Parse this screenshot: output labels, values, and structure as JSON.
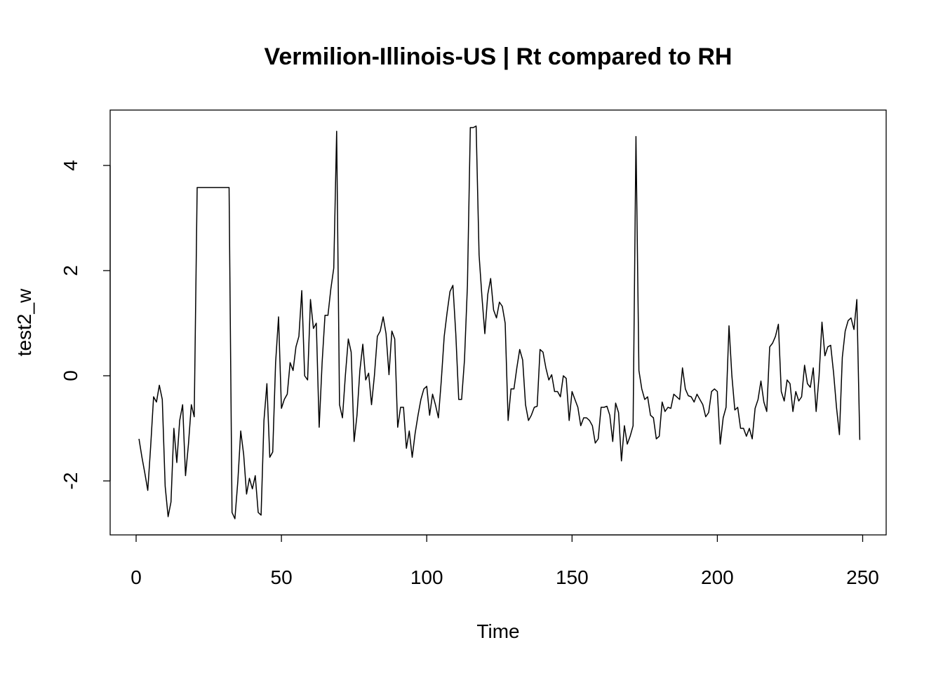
{
  "chart_data": {
    "type": "line",
    "title": "Vermilion-Illinois-US | Rt compared to RH",
    "xlabel": "Time",
    "ylabel": "test2_w",
    "xlim": [
      1,
      248
    ],
    "ylim": [
      -3,
      5
    ],
    "x_ticks": [
      0,
      50,
      100,
      150,
      200,
      250
    ],
    "x_tick_labels": [
      "0",
      "50",
      "100",
      "150",
      "200",
      "250"
    ],
    "y_ticks": [
      -2,
      0,
      2,
      4
    ],
    "y_tick_labels": [
      "-2",
      "0",
      "2",
      "4"
    ],
    "grid": false,
    "legend": "none",
    "line_color": "#000000",
    "x_start": 1,
    "values": [
      -1.2,
      -1.55,
      -1.85,
      -2.18,
      -1.35,
      -0.4,
      -0.5,
      -0.18,
      -0.45,
      -2.1,
      -2.68,
      -2.4,
      -1.0,
      -1.65,
      -0.85,
      -0.55,
      -1.9,
      -1.3,
      -0.55,
      -0.78,
      3.58,
      3.58,
      3.58,
      3.58,
      3.58,
      3.58,
      3.58,
      3.58,
      3.58,
      3.58,
      3.58,
      3.58,
      -2.6,
      -2.72,
      -2.0,
      -1.05,
      -1.5,
      -2.25,
      -1.95,
      -2.15,
      -1.9,
      -2.6,
      -2.65,
      -0.85,
      -0.15,
      -1.55,
      -1.45,
      0.25,
      1.12,
      -0.62,
      -0.45,
      -0.35,
      0.25,
      0.1,
      0.55,
      0.75,
      1.62,
      0.0,
      -0.08,
      1.45,
      0.9,
      1.0,
      -0.98,
      0.25,
      1.15,
      1.15,
      1.65,
      2.05,
      4.65,
      -0.55,
      -0.8,
      0.0,
      0.7,
      0.45,
      -1.25,
      -0.75,
      0.1,
      0.6,
      -0.08,
      0.05,
      -0.55,
      0.0,
      0.75,
      0.85,
      1.12,
      0.8,
      0.02,
      0.85,
      0.7,
      -0.98,
      -0.6,
      -0.6,
      -1.38,
      -1.05,
      -1.55,
      -1.1,
      -0.75,
      -0.45,
      -0.25,
      -0.2,
      -0.75,
      -0.35,
      -0.55,
      -0.8,
      -0.1,
      0.75,
      1.2,
      1.6,
      1.72,
      0.8,
      -0.45,
      -0.45,
      0.3,
      1.72,
      4.72,
      4.72,
      4.75,
      2.3,
      1.5,
      0.8,
      1.55,
      1.85,
      1.25,
      1.1,
      1.4,
      1.32,
      1.0,
      -0.85,
      -0.25,
      -0.25,
      0.15,
      0.5,
      0.3,
      -0.55,
      -0.85,
      -0.75,
      -0.6,
      -0.58,
      0.5,
      0.45,
      0.15,
      -0.08,
      0.02,
      -0.3,
      -0.3,
      -0.4,
      0.0,
      -0.05,
      -0.85,
      -0.3,
      -0.45,
      -0.6,
      -0.95,
      -0.8,
      -0.8,
      -0.85,
      -0.95,
      -1.28,
      -1.2,
      -0.6,
      -0.6,
      -0.58,
      -0.75,
      -1.25,
      -0.52,
      -0.7,
      -1.62,
      -0.95,
      -1.3,
      -1.15,
      -0.95,
      4.55,
      0.1,
      -0.25,
      -0.45,
      -0.4,
      -0.75,
      -0.8,
      -1.2,
      -1.15,
      -0.5,
      -0.68,
      -0.6,
      -0.62,
      -0.35,
      -0.4,
      -0.45,
      0.15,
      -0.25,
      -0.38,
      -0.4,
      -0.5,
      -0.35,
      -0.45,
      -0.55,
      -0.78,
      -0.7,
      -0.3,
      -0.25,
      -0.3,
      -1.3,
      -0.8,
      -0.6,
      0.95,
      0.0,
      -0.65,
      -0.6,
      -1.0,
      -1.0,
      -1.15,
      -1.0,
      -1.2,
      -0.62,
      -0.45,
      -0.1,
      -0.5,
      -0.68,
      0.55,
      0.62,
      0.75,
      0.98,
      -0.3,
      -0.48,
      -0.08,
      -0.15,
      -0.68,
      -0.3,
      -0.48,
      -0.4,
      0.2,
      -0.15,
      -0.22,
      0.15,
      -0.68,
      0.0,
      1.02,
      0.38,
      0.55,
      0.58,
      0.05,
      -0.6,
      -1.12,
      0.35,
      0.85,
      1.05,
      1.1,
      0.88,
      1.45,
      -1.22
    ]
  }
}
